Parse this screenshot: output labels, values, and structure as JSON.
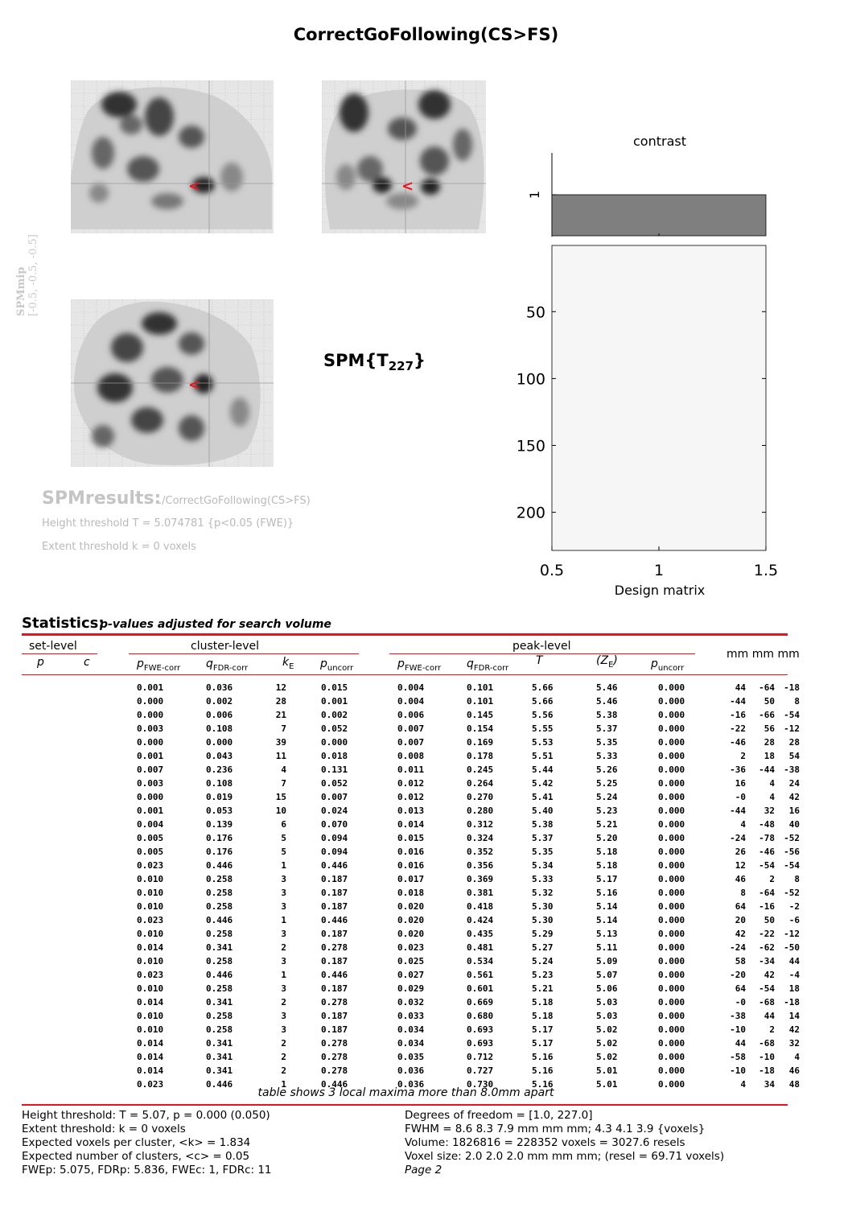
{
  "title": "CorrectGoFollowing(CS>FS)",
  "mip": {
    "label_main": "SPMmip",
    "label_coords": "[-0.5, -0.5, -0.5]",
    "marker": "<"
  },
  "spm_t": {
    "prefix": "SPM{T",
    "df": "227",
    "suffix": "}"
  },
  "contrast": {
    "title": "contrast",
    "y_tick": "1",
    "weight": 1,
    "bar_color": "#7f7f7f"
  },
  "design_matrix": {
    "xlabel": "Design matrix",
    "y_ticks": [
      "50",
      "100",
      "150",
      "200"
    ],
    "x_ticks": [
      "0.5",
      "1",
      "1.5"
    ],
    "n_scans": 228
  },
  "results": {
    "heading": "SPMresults:",
    "path": "./CorrectGoFollowing(CS>FS)",
    "height": "Height threshold T = 5.074781  {p<0.05 (FWE)}",
    "extent": "Extent threshold k = 0 voxels"
  },
  "statistics": {
    "title": "Statistics:",
    "subtitle": "p-values adjusted for search volume",
    "groups": {
      "set": "set-level",
      "cluster": "cluster-level",
      "peak": "peak-level",
      "coords": "mm mm mm"
    },
    "columns": {
      "set_p": "p",
      "set_c": "c",
      "cl_pfwe": "p",
      "cl_pfwe_sub": "FWE-corr",
      "cl_qfdr": "q",
      "cl_qfdr_sub": "FDR-corr",
      "cl_k": "k",
      "cl_k_sub": "E",
      "cl_punc": "p",
      "cl_punc_sub": "uncorr",
      "pk_pfwe": "p",
      "pk_pfwe_sub": "FWE-corr",
      "pk_qfdr": "q",
      "pk_qfdr_sub": "FDR-corr",
      "pk_t": "T",
      "pk_z": "(Z",
      "pk_z_sub": "E",
      "pk_z_close": ")",
      "pk_punc": "p",
      "pk_punc_sub": "uncorr"
    },
    "rows": [
      [
        "0.001",
        "0.036",
        "12",
        "0.015",
        "0.004",
        "0.101",
        "5.66",
        "5.46",
        "0.000",
        "44",
        "-64",
        "-18"
      ],
      [
        "0.000",
        "0.002",
        "28",
        "0.001",
        "0.004",
        "0.101",
        "5.66",
        "5.46",
        "0.000",
        "-44",
        "50",
        "8"
      ],
      [
        "0.000",
        "0.006",
        "21",
        "0.002",
        "0.006",
        "0.145",
        "5.56",
        "5.38",
        "0.000",
        "-16",
        "-66",
        "-54"
      ],
      [
        "0.003",
        "0.108",
        "7",
        "0.052",
        "0.007",
        "0.154",
        "5.55",
        "5.37",
        "0.000",
        "-22",
        "56",
        "-12"
      ],
      [
        "0.000",
        "0.000",
        "39",
        "0.000",
        "0.007",
        "0.169",
        "5.53",
        "5.35",
        "0.000",
        "-46",
        "28",
        "28"
      ],
      [
        "0.001",
        "0.043",
        "11",
        "0.018",
        "0.008",
        "0.178",
        "5.51",
        "5.33",
        "0.000",
        "2",
        "18",
        "54"
      ],
      [
        "0.007",
        "0.236",
        "4",
        "0.131",
        "0.011",
        "0.245",
        "5.44",
        "5.26",
        "0.000",
        "-36",
        "-44",
        "-38"
      ],
      [
        "0.003",
        "0.108",
        "7",
        "0.052",
        "0.012",
        "0.264",
        "5.42",
        "5.25",
        "0.000",
        "16",
        "4",
        "24"
      ],
      [
        "0.000",
        "0.019",
        "15",
        "0.007",
        "0.012",
        "0.270",
        "5.41",
        "5.24",
        "0.000",
        "-0",
        "4",
        "42"
      ],
      [
        "0.001",
        "0.053",
        "10",
        "0.024",
        "0.013",
        "0.280",
        "5.40",
        "5.23",
        "0.000",
        "-44",
        "32",
        "16"
      ],
      [
        "0.004",
        "0.139",
        "6",
        "0.070",
        "0.014",
        "0.312",
        "5.38",
        "5.21",
        "0.000",
        "4",
        "-48",
        "40"
      ],
      [
        "0.005",
        "0.176",
        "5",
        "0.094",
        "0.015",
        "0.324",
        "5.37",
        "5.20",
        "0.000",
        "-24",
        "-78",
        "-52"
      ],
      [
        "0.005",
        "0.176",
        "5",
        "0.094",
        "0.016",
        "0.352",
        "5.35",
        "5.18",
        "0.000",
        "26",
        "-46",
        "-56"
      ],
      [
        "0.023",
        "0.446",
        "1",
        "0.446",
        "0.016",
        "0.356",
        "5.34",
        "5.18",
        "0.000",
        "12",
        "-54",
        "-54"
      ],
      [
        "0.010",
        "0.258",
        "3",
        "0.187",
        "0.017",
        "0.369",
        "5.33",
        "5.17",
        "0.000",
        "46",
        "2",
        "8"
      ],
      [
        "0.010",
        "0.258",
        "3",
        "0.187",
        "0.018",
        "0.381",
        "5.32",
        "5.16",
        "0.000",
        "8",
        "-64",
        "-52"
      ],
      [
        "0.010",
        "0.258",
        "3",
        "0.187",
        "0.020",
        "0.418",
        "5.30",
        "5.14",
        "0.000",
        "64",
        "-16",
        "-2"
      ],
      [
        "0.023",
        "0.446",
        "1",
        "0.446",
        "0.020",
        "0.424",
        "5.30",
        "5.14",
        "0.000",
        "20",
        "50",
        "-6"
      ],
      [
        "0.010",
        "0.258",
        "3",
        "0.187",
        "0.020",
        "0.435",
        "5.29",
        "5.13",
        "0.000",
        "42",
        "-22",
        "-12"
      ],
      [
        "0.014",
        "0.341",
        "2",
        "0.278",
        "0.023",
        "0.481",
        "5.27",
        "5.11",
        "0.000",
        "-24",
        "-62",
        "-50"
      ],
      [
        "0.010",
        "0.258",
        "3",
        "0.187",
        "0.025",
        "0.534",
        "5.24",
        "5.09",
        "0.000",
        "58",
        "-34",
        "44"
      ],
      [
        "0.023",
        "0.446",
        "1",
        "0.446",
        "0.027",
        "0.561",
        "5.23",
        "5.07",
        "0.000",
        "-20",
        "42",
        "-4"
      ],
      [
        "0.010",
        "0.258",
        "3",
        "0.187",
        "0.029",
        "0.601",
        "5.21",
        "5.06",
        "0.000",
        "64",
        "-54",
        "18"
      ],
      [
        "0.014",
        "0.341",
        "2",
        "0.278",
        "0.032",
        "0.669",
        "5.18",
        "5.03",
        "0.000",
        "-0",
        "-68",
        "-18"
      ],
      [
        "0.010",
        "0.258",
        "3",
        "0.187",
        "0.033",
        "0.680",
        "5.18",
        "5.03",
        "0.000",
        "-38",
        "44",
        "14"
      ],
      [
        "0.010",
        "0.258",
        "3",
        "0.187",
        "0.034",
        "0.693",
        "5.17",
        "5.02",
        "0.000",
        "-10",
        "2",
        "42"
      ],
      [
        "0.014",
        "0.341",
        "2",
        "0.278",
        "0.034",
        "0.693",
        "5.17",
        "5.02",
        "0.000",
        "44",
        "-68",
        "32"
      ],
      [
        "0.014",
        "0.341",
        "2",
        "0.278",
        "0.035",
        "0.712",
        "5.16",
        "5.02",
        "0.000",
        "-58",
        "-10",
        "4"
      ],
      [
        "0.014",
        "0.341",
        "2",
        "0.278",
        "0.036",
        "0.727",
        "5.16",
        "5.01",
        "0.000",
        "-10",
        "-18",
        "46"
      ],
      [
        "0.023",
        "0.446",
        "1",
        "0.446",
        "0.036",
        "0.730",
        "5.16",
        "5.01",
        "0.000",
        "4",
        "34",
        "48"
      ]
    ],
    "note": "table shows 3 local maxima more than 8.0mm apart"
  },
  "footer": {
    "left": [
      "Height threshold: T = 5.07, p = 0.000 (0.050)",
      "Extent threshold: k = 0 voxels",
      "Expected voxels per cluster, <k> = 1.834",
      "Expected number of clusters, <c> = 0.05",
      "FWEp: 5.075, FDRp: 5.836, FWEc: 1, FDRc: 11"
    ],
    "right": [
      "Degrees of freedom = [1.0, 227.0]",
      "FWHM = 8.6 8.3 7.9 mm mm mm; 4.3 4.1 3.9 {voxels}",
      "Volume: 1826816 = 228352 voxels = 3027.6 resels",
      "Voxel size: 2.0 2.0 2.0 mm mm mm; (resel = 69.71 voxels)",
      "Page 2"
    ]
  },
  "colors": {
    "rule": "#e8141d",
    "marker": "#e8141d",
    "grey_text": "#b9b9b9",
    "bar": "#7f7f7f"
  }
}
